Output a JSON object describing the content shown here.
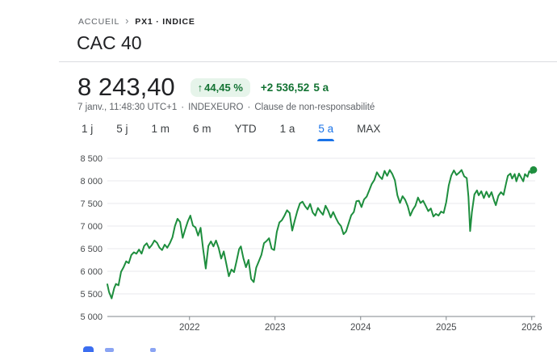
{
  "breadcrumb": {
    "home": "ACCUEIL",
    "separator": "›",
    "current": "PX1 · INDICE"
  },
  "header": {
    "title": "CAC 40"
  },
  "quote": {
    "price": "8 243,40",
    "arrow": "↑",
    "change_percent": "44,45 %",
    "change_absolute": "+2 536,52",
    "change_period": "5 a",
    "timestamp": "7 janv., 11:48:30 UTC+1",
    "dot_separator": "·",
    "exchange": "INDEXEURO",
    "disclaimer": "Clause de non-responsabilité"
  },
  "range_tabs": {
    "items": [
      {
        "label": "1 j",
        "selected": false
      },
      {
        "label": "5 j",
        "selected": false
      },
      {
        "label": "1 m",
        "selected": false
      },
      {
        "label": "6 m",
        "selected": false
      },
      {
        "label": "YTD",
        "selected": false
      },
      {
        "label": "1 a",
        "selected": false
      },
      {
        "label": "5 a",
        "selected": true
      },
      {
        "label": "MAX",
        "selected": false
      }
    ]
  },
  "chart_data": {
    "type": "area",
    "title": "CAC 40 index price, 5-year range",
    "ylabel": "",
    "xlabel": "",
    "ylim": [
      5000,
      8500
    ],
    "xlim": [
      2021.04,
      2026.04
    ],
    "grid": true,
    "legend": "none",
    "y_tick_values": [
      8500,
      8000,
      7500,
      7000,
      6500,
      6000,
      5500,
      5000
    ],
    "y_tick_labels": [
      "8 500",
      "8 000",
      "7 500",
      "7 000",
      "6 500",
      "6 000",
      "5 500",
      "5 000"
    ],
    "x_tick_values": [
      2022,
      2023,
      2024,
      2025,
      2026
    ],
    "x_tick_labels": [
      "2022",
      "2023",
      "2024",
      "2025",
      "2026"
    ],
    "end_dot": true,
    "last_value": 8243.4,
    "series": [
      {
        "name": "CAC 40",
        "points": [
          [
            2021.04,
            5710
          ],
          [
            2021.06,
            5540
          ],
          [
            2021.09,
            5400
          ],
          [
            2021.12,
            5630
          ],
          [
            2021.14,
            5720
          ],
          [
            2021.17,
            5690
          ],
          [
            2021.2,
            5990
          ],
          [
            2021.23,
            6090
          ],
          [
            2021.26,
            6220
          ],
          [
            2021.29,
            6180
          ],
          [
            2021.32,
            6360
          ],
          [
            2021.35,
            6420
          ],
          [
            2021.38,
            6390
          ],
          [
            2021.41,
            6480
          ],
          [
            2021.44,
            6390
          ],
          [
            2021.47,
            6560
          ],
          [
            2021.5,
            6620
          ],
          [
            2021.53,
            6510
          ],
          [
            2021.56,
            6580
          ],
          [
            2021.59,
            6680
          ],
          [
            2021.62,
            6630
          ],
          [
            2021.65,
            6520
          ],
          [
            2021.68,
            6470
          ],
          [
            2021.71,
            6590
          ],
          [
            2021.74,
            6520
          ],
          [
            2021.77,
            6620
          ],
          [
            2021.8,
            6750
          ],
          [
            2021.83,
            7000
          ],
          [
            2021.86,
            7160
          ],
          [
            2021.89,
            7090
          ],
          [
            2021.92,
            6740
          ],
          [
            2021.95,
            6930
          ],
          [
            2021.98,
            7100
          ],
          [
            2022.01,
            7230
          ],
          [
            2022.04,
            7010
          ],
          [
            2022.07,
            6970
          ],
          [
            2022.1,
            6790
          ],
          [
            2022.13,
            6960
          ],
          [
            2022.16,
            6480
          ],
          [
            2022.19,
            6060
          ],
          [
            2022.22,
            6560
          ],
          [
            2022.25,
            6660
          ],
          [
            2022.28,
            6550
          ],
          [
            2022.31,
            6680
          ],
          [
            2022.34,
            6520
          ],
          [
            2022.37,
            6280
          ],
          [
            2022.4,
            6440
          ],
          [
            2022.43,
            6170
          ],
          [
            2022.46,
            5890
          ],
          [
            2022.49,
            6040
          ],
          [
            2022.52,
            5980
          ],
          [
            2022.55,
            6230
          ],
          [
            2022.58,
            6490
          ],
          [
            2022.6,
            6550
          ],
          [
            2022.63,
            6290
          ],
          [
            2022.66,
            6090
          ],
          [
            2022.69,
            6250
          ],
          [
            2022.72,
            5830
          ],
          [
            2022.75,
            5760
          ],
          [
            2022.78,
            6080
          ],
          [
            2022.81,
            6220
          ],
          [
            2022.84,
            6360
          ],
          [
            2022.87,
            6620
          ],
          [
            2022.9,
            6670
          ],
          [
            2022.93,
            6730
          ],
          [
            2022.96,
            6500
          ],
          [
            2022.99,
            6470
          ],
          [
            2023.02,
            6870
          ],
          [
            2023.05,
            7080
          ],
          [
            2023.08,
            7130
          ],
          [
            2023.11,
            7230
          ],
          [
            2023.14,
            7350
          ],
          [
            2023.17,
            7290
          ],
          [
            2023.2,
            6900
          ],
          [
            2023.23,
            7120
          ],
          [
            2023.26,
            7330
          ],
          [
            2023.29,
            7500
          ],
          [
            2023.32,
            7540
          ],
          [
            2023.35,
            7440
          ],
          [
            2023.38,
            7370
          ],
          [
            2023.41,
            7490
          ],
          [
            2023.44,
            7300
          ],
          [
            2023.47,
            7230
          ],
          [
            2023.5,
            7400
          ],
          [
            2023.53,
            7320
          ],
          [
            2023.56,
            7250
          ],
          [
            2023.59,
            7450
          ],
          [
            2023.62,
            7340
          ],
          [
            2023.65,
            7190
          ],
          [
            2023.68,
            7310
          ],
          [
            2023.71,
            7180
          ],
          [
            2023.74,
            7070
          ],
          [
            2023.77,
            7000
          ],
          [
            2023.8,
            6820
          ],
          [
            2023.83,
            6880
          ],
          [
            2023.86,
            7060
          ],
          [
            2023.89,
            7240
          ],
          [
            2023.92,
            7310
          ],
          [
            2023.95,
            7550
          ],
          [
            2023.98,
            7560
          ],
          [
            2024.01,
            7420
          ],
          [
            2024.04,
            7590
          ],
          [
            2024.07,
            7650
          ],
          [
            2024.1,
            7790
          ],
          [
            2024.13,
            7930
          ],
          [
            2024.16,
            8020
          ],
          [
            2024.19,
            8190
          ],
          [
            2024.22,
            8100
          ],
          [
            2024.25,
            8040
          ],
          [
            2024.28,
            8220
          ],
          [
            2024.31,
            8110
          ],
          [
            2024.34,
            8240
          ],
          [
            2024.37,
            8150
          ],
          [
            2024.4,
            8010
          ],
          [
            2024.43,
            7680
          ],
          [
            2024.46,
            7510
          ],
          [
            2024.49,
            7660
          ],
          [
            2024.52,
            7580
          ],
          [
            2024.55,
            7440
          ],
          [
            2024.58,
            7230
          ],
          [
            2024.61,
            7360
          ],
          [
            2024.64,
            7450
          ],
          [
            2024.67,
            7630
          ],
          [
            2024.7,
            7510
          ],
          [
            2024.73,
            7560
          ],
          [
            2024.76,
            7450
          ],
          [
            2024.79,
            7330
          ],
          [
            2024.82,
            7390
          ],
          [
            2024.85,
            7210
          ],
          [
            2024.88,
            7270
          ],
          [
            2024.91,
            7230
          ],
          [
            2024.94,
            7320
          ],
          [
            2024.97,
            7290
          ],
          [
            2025.0,
            7530
          ],
          [
            2025.03,
            7900
          ],
          [
            2025.06,
            8120
          ],
          [
            2025.09,
            8230
          ],
          [
            2025.12,
            8130
          ],
          [
            2025.15,
            8180
          ],
          [
            2025.18,
            8240
          ],
          [
            2025.21,
            8100
          ],
          [
            2025.24,
            8060
          ],
          [
            2025.26,
            7650
          ],
          [
            2025.28,
            6890
          ],
          [
            2025.3,
            7310
          ],
          [
            2025.33,
            7700
          ],
          [
            2025.36,
            7790
          ],
          [
            2025.38,
            7680
          ],
          [
            2025.41,
            7770
          ],
          [
            2025.44,
            7620
          ],
          [
            2025.47,
            7760
          ],
          [
            2025.5,
            7640
          ],
          [
            2025.53,
            7750
          ],
          [
            2025.56,
            7560
          ],
          [
            2025.58,
            7460
          ],
          [
            2025.61,
            7670
          ],
          [
            2025.64,
            7750
          ],
          [
            2025.67,
            7690
          ],
          [
            2025.7,
            7950
          ],
          [
            2025.72,
            8110
          ],
          [
            2025.75,
            8160
          ],
          [
            2025.77,
            8050
          ],
          [
            2025.8,
            8150
          ],
          [
            2025.82,
            7990
          ],
          [
            2025.85,
            8160
          ],
          [
            2025.88,
            8060
          ],
          [
            2025.9,
            7990
          ],
          [
            2025.92,
            8150
          ],
          [
            2025.95,
            8090
          ],
          [
            2025.97,
            8210
          ],
          [
            2026.0,
            8170
          ],
          [
            2026.02,
            8243.4
          ]
        ]
      }
    ]
  },
  "colors": {
    "accent_blue": "#1a73e8",
    "positive_green": "#137333",
    "badge_bg": "#e6f4ea",
    "line_green": "#1e8e3e",
    "fill_green": "#34a853",
    "text_primary": "#202124",
    "text_secondary": "#5f6368",
    "axis_label": "#474a4d",
    "grid": "#e9eaec",
    "axis": "#80868b"
  }
}
